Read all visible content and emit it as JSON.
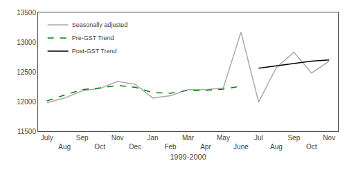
{
  "chart_data": {
    "type": "line",
    "title": "",
    "xlabel": "1999-2000",
    "categories": [
      "July",
      "Aug",
      "Sep",
      "Oct",
      "Nov",
      "Dec",
      "Jan",
      "Feb",
      "Mar",
      "Apr",
      "May",
      "June",
      "Jul",
      "Aug",
      "Sep",
      "Oct",
      "Nov"
    ],
    "series": [
      {
        "name": "Seasonally adjusted",
        "color": "#aaaaaa",
        "line_style": "solid",
        "values": [
          11980,
          12060,
          12180,
          12220,
          12340,
          12290,
          12060,
          12100,
          12200,
          12200,
          12230,
          13170,
          11990,
          12570,
          12830,
          12480,
          12680
        ]
      },
      {
        "name": "Pre-GST Trend",
        "color": "#008000",
        "line_style": "dashed",
        "values": [
          12010,
          12110,
          12200,
          12230,
          12270,
          12240,
          12150,
          12140,
          12190,
          12190,
          12210,
          12260,
          null,
          null,
          null,
          null,
          null
        ]
      },
      {
        "name": "Post-GST Trend",
        "color": "#000000",
        "line_style": "solid",
        "values": [
          null,
          null,
          null,
          null,
          null,
          null,
          null,
          null,
          null,
          null,
          null,
          null,
          12560,
          12600,
          12640,
          12680,
          12700
        ]
      }
    ],
    "ylim": [
      11500,
      13500
    ],
    "yticks": [
      11500,
      12000,
      12500,
      13000,
      13500
    ],
    "grid": false,
    "legend": "upper left"
  }
}
